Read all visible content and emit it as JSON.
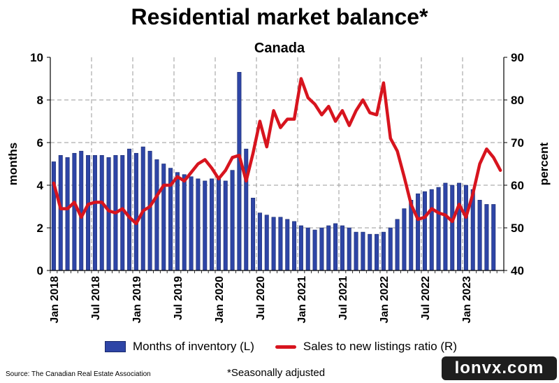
{
  "chart_data": {
    "type": "bar+line",
    "title": "Residential market balance*",
    "subtitle": "Canada",
    "ylabel_left": "months",
    "ylabel_right": "percent",
    "ylim_left": [
      0,
      10
    ],
    "ylim_right": [
      40,
      90
    ],
    "yticks_left": [
      "0",
      "2",
      "4",
      "6",
      "8",
      "10"
    ],
    "yticks_right": [
      "40",
      "50",
      "60",
      "70",
      "80",
      "90"
    ],
    "xticks": [
      "Jan 2018",
      "Jul 2018",
      "Jan 2019",
      "Jul 2019",
      "Jan 2020",
      "Jul 2020",
      "Jan 2021",
      "Jul 2021",
      "Jan 2022",
      "Jul 2022",
      "Jan 2023"
    ],
    "grid": true,
    "legend_position": "bottom",
    "series": [
      {
        "name": "Months of inventory (L)",
        "type": "bar",
        "axis": "left",
        "color": "#2e45a6",
        "values": [
          5.1,
          5.4,
          5.3,
          5.5,
          5.6,
          5.4,
          5.4,
          5.4,
          5.3,
          5.4,
          5.4,
          5.7,
          5.5,
          5.8,
          5.6,
          5.2,
          5.0,
          4.8,
          4.6,
          4.5,
          4.4,
          4.3,
          4.2,
          4.3,
          4.3,
          4.2,
          4.7,
          9.3,
          5.7,
          3.4,
          2.7,
          2.6,
          2.5,
          2.5,
          2.4,
          2.3,
          2.1,
          2.0,
          1.9,
          2.0,
          2.1,
          2.2,
          2.1,
          2.0,
          1.8,
          1.8,
          1.7,
          1.7,
          1.8,
          2.0,
          2.4,
          2.9,
          3.3,
          3.6,
          3.7,
          3.8,
          3.9,
          4.1,
          4.0,
          4.1,
          4.0,
          3.8,
          3.3,
          3.1,
          3.1
        ]
      },
      {
        "name": "Sales to new listings ratio (R)",
        "type": "line",
        "axis": "right",
        "color": "#d7141e",
        "values": [
          60.5,
          54.5,
          54.5,
          56.0,
          52.5,
          55.5,
          56.0,
          56.0,
          54.0,
          53.5,
          54.5,
          52.5,
          51.0,
          54.0,
          55.0,
          57.5,
          60.0,
          60.0,
          62.0,
          61.0,
          63.0,
          65.0,
          66.0,
          64.0,
          61.5,
          63.5,
          66.5,
          67.0,
          61.0,
          67.5,
          75.0,
          69.0,
          77.5,
          73.5,
          75.5,
          75.5,
          85.0,
          80.5,
          79.0,
          76.5,
          78.5,
          75.0,
          77.5,
          74.0,
          77.5,
          80.0,
          77.0,
          76.5,
          84.0,
          71.0,
          68.0,
          62.0,
          55.5,
          52.0,
          52.5,
          54.5,
          53.5,
          53.0,
          51.5,
          55.5,
          52.5,
          58.0,
          65.0,
          68.5,
          66.5,
          63.5
        ]
      }
    ]
  },
  "legend": {
    "bar_label": "Months of inventory (L)",
    "line_label": "Sales to new listings ratio (R)"
  },
  "source": "Source: The Canadian Real Estate Association",
  "footnote": "*Seasonally adjusted",
  "watermark": "lonvx.com"
}
